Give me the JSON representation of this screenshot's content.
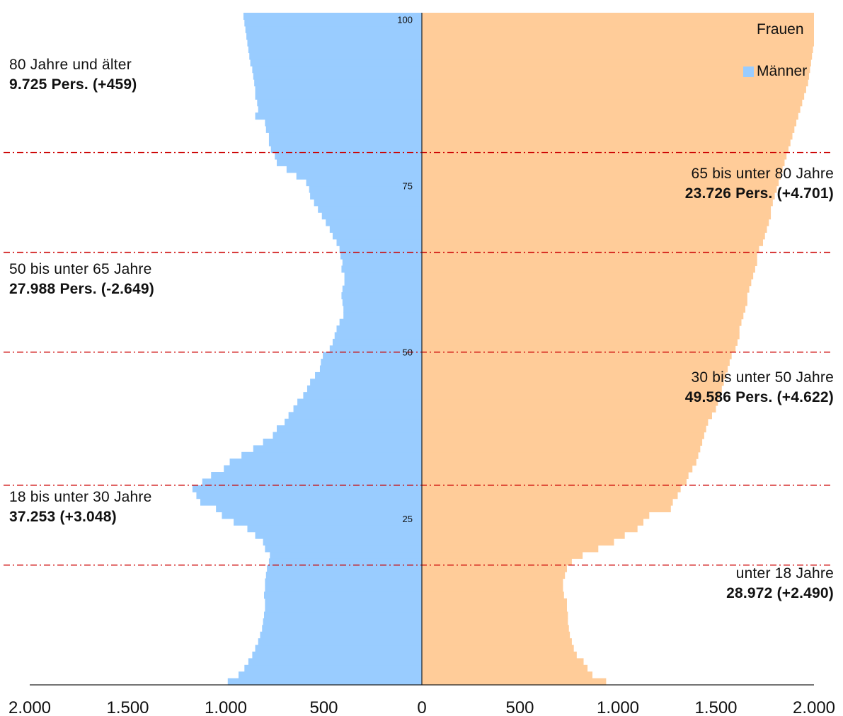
{
  "chart_data": {
    "type": "bar",
    "orientation": "horizontal-population-pyramid",
    "ages": [
      0,
      1,
      2,
      3,
      4,
      5,
      6,
      7,
      8,
      9,
      10,
      11,
      12,
      13,
      14,
      15,
      16,
      17,
      18,
      19,
      20,
      21,
      22,
      23,
      24,
      25,
      26,
      27,
      28,
      29,
      30,
      31,
      32,
      33,
      34,
      35,
      36,
      37,
      38,
      39,
      40,
      41,
      42,
      43,
      44,
      45,
      46,
      47,
      48,
      49,
      50,
      51,
      52,
      53,
      54,
      55,
      56,
      57,
      58,
      59,
      60,
      61,
      62,
      63,
      64,
      65,
      66,
      67,
      68,
      69,
      70,
      71,
      72,
      73,
      74,
      75,
      76,
      77,
      78,
      79,
      80,
      81,
      82,
      83,
      84,
      85,
      86,
      87,
      88,
      89,
      90,
      91,
      92,
      93,
      94,
      95,
      96,
      97,
      98,
      99,
      100
    ],
    "series": [
      {
        "name": "Männer",
        "color": "#99ccff",
        "values": [
          990,
          935,
          905,
          885,
          865,
          850,
          835,
          825,
          815,
          810,
          805,
          800,
          800,
          805,
          800,
          800,
          795,
          790,
          780,
          775,
          800,
          810,
          850,
          890,
          960,
          1020,
          1050,
          1130,
          1150,
          1170,
          1120,
          1075,
          1010,
          980,
          920,
          860,
          810,
          760,
          740,
          700,
          680,
          655,
          635,
          605,
          585,
          570,
          545,
          520,
          515,
          505,
          470,
          455,
          445,
          435,
          420,
          400,
          400,
          405,
          410,
          405,
          395,
          395,
          410,
          405,
          415,
          420,
          435,
          455,
          470,
          490,
          510,
          530,
          550,
          570,
          575,
          590,
          640,
          690,
          740,
          750,
          770,
          780,
          780,
          795,
          800,
          850,
          835,
          840,
          850,
          850,
          855,
          860,
          865,
          875,
          880,
          885,
          890,
          895,
          900,
          905,
          910
        ]
      },
      {
        "name": "Frauen",
        "color": "#ffcc99",
        "values": [
          940,
          870,
          845,
          825,
          790,
          775,
          765,
          755,
          750,
          745,
          745,
          740,
          740,
          725,
          720,
          720,
          730,
          740,
          765,
          820,
          900,
          980,
          1035,
          1100,
          1130,
          1160,
          1270,
          1280,
          1305,
          1320,
          1350,
          1360,
          1380,
          1400,
          1410,
          1420,
          1430,
          1440,
          1450,
          1460,
          1480,
          1500,
          1510,
          1520,
          1530,
          1540,
          1550,
          1560,
          1570,
          1580,
          1600,
          1610,
          1620,
          1620,
          1630,
          1640,
          1650,
          1660,
          1660,
          1670,
          1680,
          1690,
          1700,
          1710,
          1710,
          1720,
          1740,
          1750,
          1760,
          1770,
          1780,
          1780,
          1790,
          1800,
          1810,
          1820,
          1830,
          1840,
          1850,
          1860,
          1870,
          1880,
          1890,
          1900,
          1910,
          1920,
          1930,
          1940,
          1950,
          1960,
          1970,
          1975,
          1980,
          1985,
          1990,
          1995,
          2000,
          2000,
          2000,
          2000,
          2000
        ]
      }
    ],
    "x_ticks": [
      "2.000",
      "1.500",
      "1.000",
      "500",
      "0",
      "500",
      "1.000",
      "1.500",
      "2.000"
    ],
    "age_ticks": [
      {
        "age": 100,
        "label": "100"
      },
      {
        "age": 75,
        "label": "75"
      },
      {
        "age": 50,
        "label": "50"
      },
      {
        "age": 25,
        "label": "25"
      }
    ],
    "group_boundaries": [
      18,
      30,
      50,
      65,
      80
    ],
    "xlim": [
      -2000,
      2000
    ],
    "legend_position": "top-right"
  },
  "legend": {
    "frauen": "Frauen",
    "maenner": "Männer"
  },
  "annotations": {
    "a80": {
      "label": "80 Jahre und älter",
      "value": "9.725 Pers. (+459)"
    },
    "a65": {
      "label": "65 bis unter 80 Jahre",
      "value": "23.726 Pers. (+4.701)"
    },
    "a50": {
      "label": "50 bis unter 65 Jahre",
      "value": "27.988 Pers. (-2.649)"
    },
    "a30": {
      "label": "30 bis unter 50 Jahre",
      "value": "49.586 Pers. (+4.622)"
    },
    "a18": {
      "label": "18 bis unter 30 Jahre",
      "value": "37.253 (+3.048)"
    },
    "a0": {
      "label": "unter 18 Jahre",
      "value": "28.972 (+2.490)"
    }
  },
  "colors": {
    "male": "#99ccff",
    "female": "#ffcc99",
    "divider": "#cc0000",
    "axis": "#222222"
  }
}
